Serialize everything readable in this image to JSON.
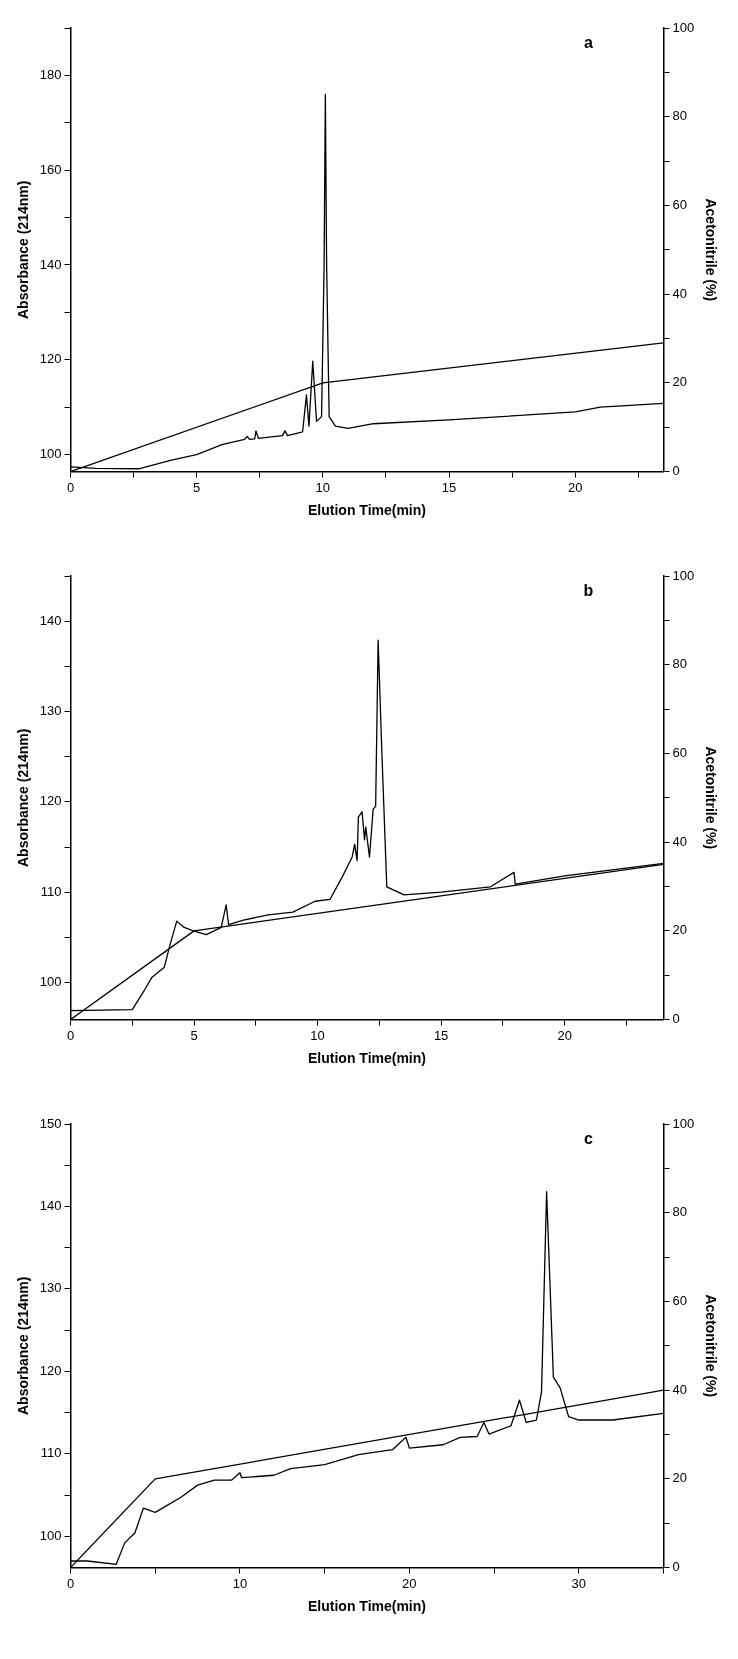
{
  "chart_data": [
    {
      "type": "line",
      "annotations": [
        "a"
      ],
      "xlabel": "Elution Time(min)",
      "ylabel": "Absorbance (214nm)",
      "y2label": "Acetonitrile (%)",
      "xlim": [
        0,
        23.5
      ],
      "xticks": [
        0,
        {
          "value": 2.5,
          "label": null
        },
        5,
        {
          "value": 7.5,
          "label": null
        },
        10,
        {
          "value": 12.5,
          "label": null
        },
        15,
        {
          "value": 17.5,
          "label": null
        },
        20,
        {
          "value": 22.5,
          "label": null
        }
      ],
      "ylim": [
        96.4,
        190
      ],
      "yticks": [
        100,
        {
          "value": 110,
          "label": null
        },
        120,
        {
          "value": 130,
          "label": null
        },
        140,
        {
          "value": 150,
          "label": null
        },
        160,
        {
          "value": 170,
          "label": null
        },
        180,
        {
          "value": 190,
          "label": null
        }
      ],
      "y2lim": [
        0,
        100
      ],
      "y2ticks": [
        0,
        {
          "value": 10,
          "label": null
        },
        20,
        {
          "value": 30,
          "label": null
        },
        40,
        {
          "value": 50,
          "label": null
        },
        60,
        {
          "value": 70,
          "label": null
        },
        80,
        {
          "value": 90,
          "label": null
        },
        100
      ],
      "series": [
        {
          "color": "#000000",
          "x": [
            0,
            1,
            2.7,
            4,
            5,
            6,
            6.9,
            7.0,
            7.1,
            7.3,
            7.35,
            7.45,
            8.4,
            8.5,
            8.6,
            9.2,
            9.35,
            9.45,
            9.6,
            9.75,
            9.95,
            10.05,
            10.1,
            10.15,
            10.25,
            10.5,
            11,
            12,
            15,
            20,
            21,
            23.5
          ],
          "values": [
            97.4,
            97.1,
            97.0,
            98.8,
            100,
            102.1,
            103.2,
            103.8,
            103.2,
            103.3,
            105,
            103.4,
            104,
            105,
            104,
            104.8,
            112.6,
            106,
            119.7,
            107,
            108,
            140,
            176,
            140,
            108,
            106,
            105.5,
            106.5,
            107.3,
            109,
            110,
            110.8
          ]
        },
        {
          "color": "#000000",
          "axis": "y2",
          "x": [
            0,
            10,
            23.5
          ],
          "values": [
            0,
            20,
            29
          ]
        }
      ]
    },
    {
      "type": "line",
      "annotations": [
        "b"
      ],
      "xlabel": "Elution Time(min)",
      "ylabel": "Absorbance (214nm)",
      "y2label": "Acetonitrile (%)",
      "xlim": [
        0,
        24
      ],
      "xticks": [
        0,
        {
          "value": 2.5,
          "label": null
        },
        5,
        {
          "value": 7.5,
          "label": null
        },
        10,
        {
          "value": 12.5,
          "label": null
        },
        15,
        {
          "value": 17.5,
          "label": null
        },
        20,
        {
          "value": 22.5,
          "label": null
        }
      ],
      "ylim": [
        95.9,
        145
      ],
      "yticks": [
        100,
        {
          "value": 105,
          "label": null
        },
        110,
        {
          "value": 115,
          "label": null
        },
        120,
        {
          "value": 125,
          "label": null
        },
        130,
        {
          "value": 135,
          "label": null
        },
        140,
        {
          "value": 145,
          "label": null
        }
      ],
      "y2lim": [
        0,
        100
      ],
      "y2ticks": [
        0,
        {
          "value": 10,
          "label": null
        },
        20,
        {
          "value": 30,
          "label": null
        },
        40,
        {
          "value": 50,
          "label": null
        },
        60,
        {
          "value": 70,
          "label": null
        },
        80,
        {
          "value": 90,
          "label": null
        },
        100
      ],
      "series": [
        {
          "color": "#000000",
          "x": [
            0,
            2.5,
            3,
            3.3,
            3.8,
            4.0,
            4.3,
            4.6,
            5,
            5.5,
            6.1,
            6.3,
            6.4,
            7,
            8,
            9,
            9.9,
            10.5,
            11,
            11.4,
            11.5,
            11.6,
            11.65,
            11.8,
            11.9,
            11.95,
            12.1,
            12.25,
            12.35,
            12.45,
            12.6,
            12.8,
            13.5,
            15,
            17,
            17.95,
            18,
            20,
            24
          ],
          "values": [
            96.9,
            97.0,
            99.2,
            100.6,
            101.7,
            103.9,
            106.8,
            106.1,
            105.7,
            105.3,
            106.1,
            108.6,
            106.4,
            106.9,
            107.5,
            107.8,
            109,
            109.2,
            111.7,
            113.9,
            115.3,
            113.5,
            118.3,
            118.9,
            115.8,
            117.2,
            113.9,
            119.2,
            119.5,
            137.9,
            125.6,
            110.6,
            109.7,
            110,
            110.6,
            112.2,
            110.9,
            111.8,
            113.2
          ]
        },
        {
          "color": "#000000",
          "axis": "y2",
          "x": [
            0,
            5,
            24
          ],
          "values": [
            0,
            20,
            35
          ]
        }
      ]
    },
    {
      "type": "line",
      "annotations": [
        "c"
      ],
      "xlabel": "Elution Time(min)",
      "ylabel": "Absorbance (214nm)",
      "y2label": "Acetonitrile (%)",
      "xlim": [
        0,
        35
      ],
      "xticks": [
        0,
        {
          "value": 5,
          "label": null
        },
        10,
        {
          "value": 15,
          "label": null
        },
        20,
        {
          "value": 25,
          "label": null
        },
        30,
        {
          "value": 35,
          "label": null
        }
      ],
      "ylim": [
        96.2,
        150
      ],
      "yticks": [
        100,
        {
          "value": 105,
          "label": null
        },
        110,
        {
          "value": 115,
          "label": null
        },
        120,
        {
          "value": 125,
          "label": null
        },
        130,
        {
          "value": 135,
          "label": null
        },
        140,
        {
          "value": 145,
          "label": null
        },
        150
      ],
      "y2lim": [
        0,
        100
      ],
      "y2ticks": [
        0,
        {
          "value": 10,
          "label": null
        },
        20,
        {
          "value": 30,
          "label": null
        },
        40,
        {
          "value": 50,
          "label": null
        },
        60,
        {
          "value": 70,
          "label": null
        },
        80,
        {
          "value": 90,
          "label": null
        },
        100
      ],
      "series": [
        {
          "color": "#000000",
          "x": [
            0,
            1,
            2.7,
            3.2,
            3.8,
            4.3,
            5,
            5.5,
            6.5,
            7.5,
            8.5,
            9.5,
            10,
            10.1,
            12,
            13,
            15,
            17,
            19,
            19.8,
            20,
            22,
            23,
            24,
            24.4,
            24.7,
            26,
            26.5,
            26.9,
            27.5,
            27.8,
            28.1,
            28.5,
            28.9,
            29.4,
            30,
            32,
            35
          ],
          "values": [
            97.0,
            97.0,
            96.6,
            99.2,
            100.4,
            103.4,
            102.9,
            103.5,
            104.7,
            106.2,
            106.8,
            106.8,
            107.7,
            107.1,
            107.4,
            108.2,
            108.7,
            109.9,
            110.5,
            112,
            110.7,
            111.1,
            112,
            112.1,
            113.8,
            112.4,
            113.4,
            116.5,
            113.8,
            114.1,
            117.5,
            141.8,
            119.3,
            118,
            114.5,
            114.1,
            114.1,
            114.9
          ]
        },
        {
          "color": "#000000",
          "axis": "y2",
          "x": [
            0,
            5,
            35
          ],
          "values": [
            0,
            20,
            40
          ]
        }
      ]
    }
  ]
}
